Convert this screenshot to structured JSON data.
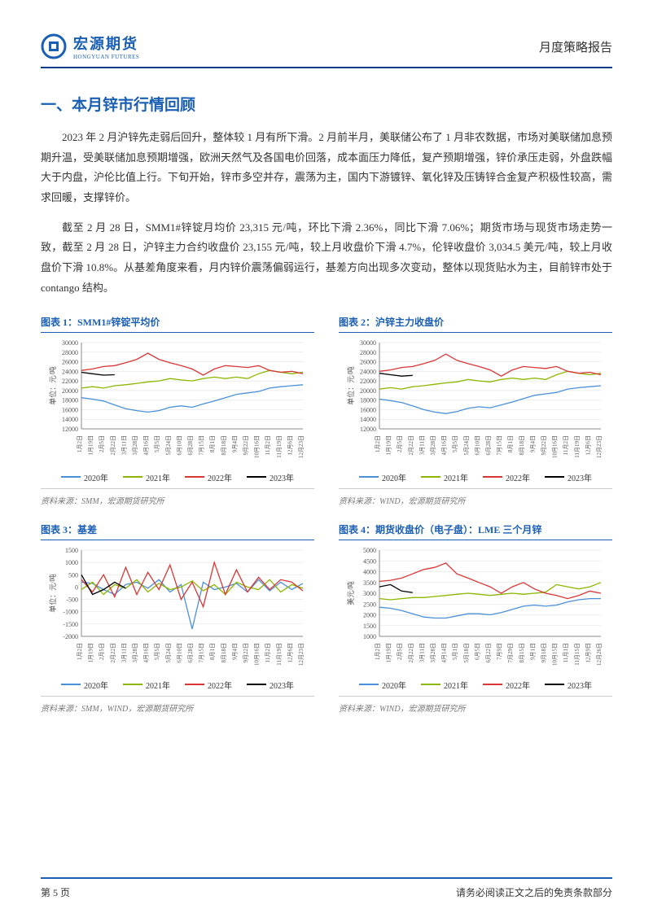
{
  "header": {
    "logo_cn": "宏源期货",
    "logo_en": "HONGYUAN FUTURES",
    "report_type": "月度策略报告",
    "logo_colors": {
      "ring": "#1a5fb4",
      "inner": "#4a90d9"
    }
  },
  "section_title": "一、本月锌市行情回顾",
  "paragraphs": [
    "2023 年 2 月沪锌先走弱后回升，整体较 1 月有所下滑。2 月前半月，美联储公布了 1 月非农数据，市场对美联储加息预期升温，受美联储加息预期增强，欧洲天然气及各国电价回落，成本面压力降低，复产预期增强，锌价承压走弱，外盘跌幅大于内盘，沪伦比值上行。下旬开始，锌市多空并存，震荡为主，国内下游镀锌、氧化锌及压铸锌合金复产积极性较高，需求回暖，支撑锌价。",
    "截至 2 月 28 日，SMM1#锌锭月均价 23,315 元/吨，环比下滑 2.36%，同比下滑 7.06%；期货市场与现货市场走势一致，截至 2 月 28 日，沪锌主力合约收盘价 23,155 元/吨，较上月收盘价下滑 4.7%，伦锌收盘价 3,034.5 美元/吨，较上月收盘价下滑 10.8%。从基差角度来看，月内锌价震荡偏弱运行，基差方向出现多次变动，整体以现货贴水为主，目前锌市处于 contango 结构。"
  ],
  "x_labels": [
    "1月2日",
    "1月19日",
    "2月5日",
    "2月22日",
    "3月11日",
    "3月28日",
    "4月16日",
    "5月5日",
    "5月24日",
    "6月10日",
    "6月28日",
    "7月15日",
    "8月1日",
    "8月18日",
    "9月4日",
    "9月22日",
    "10月16日",
    "11月2日",
    "11月19日",
    "12月6日",
    "12月23日"
  ],
  "x_labels_4": [
    "1月2日",
    "1月19日",
    "2月5日",
    "2月22日",
    "3月11日",
    "3月28日",
    "4月14日",
    "5月1日",
    "5月18日",
    "6月5日",
    "6月22日",
    "7月9日",
    "7月29日",
    "8月15日",
    "9月1日",
    "9月18日",
    "10月15日",
    "11月1日",
    "11月15日",
    "12月9日",
    "12月26日"
  ],
  "legend_labels": [
    "2020年",
    "2021年",
    "2022年",
    "2023年"
  ],
  "series_colors": {
    "2020": "#4a90d9",
    "2021": "#8db600",
    "2022": "#d93636",
    "2023": "#000000"
  },
  "chart_style": {
    "grid_color": "#dcdcdc",
    "axis_color": "#888",
    "background": "#ffffff",
    "label_fontsize": 9,
    "tick_fontsize": 8,
    "line_width": 1.3
  },
  "charts": [
    {
      "id": "chart1",
      "title": "图表 1：SMM1#锌锭平均价",
      "ylabel": "单位：元/吨",
      "ylim": [
        12000,
        30000
      ],
      "yticks": [
        12000,
        14000,
        16000,
        18000,
        20000,
        22000,
        24000,
        26000,
        28000,
        30000
      ],
      "source": "资料来源：SMM，宏源期货研究所",
      "series": {
        "2020": [
          18500,
          18200,
          17800,
          17000,
          16200,
          15800,
          15500,
          15800,
          16500,
          16800,
          16500,
          17200,
          17800,
          18500,
          19200,
          19500,
          19800,
          20500,
          20800,
          21000,
          21200
        ],
        "2021": [
          20500,
          20800,
          20500,
          21000,
          21200,
          21500,
          21800,
          22000,
          22500,
          22200,
          22000,
          22500,
          22800,
          22500,
          22800,
          22500,
          23500,
          24200,
          23800,
          23500,
          23800
        ],
        "2022": [
          24200,
          24500,
          25000,
          25200,
          25800,
          26500,
          27800,
          26500,
          25800,
          25200,
          24500,
          23200,
          24500,
          25200,
          25000,
          24800,
          25200,
          24200,
          23800,
          24000,
          23500
        ],
        "2023": [
          23800,
          23500,
          23200,
          23300
        ]
      }
    },
    {
      "id": "chart2",
      "title": "图表 2：沪锌主力收盘价",
      "ylabel": "单位：元/吨",
      "ylim": [
        12000,
        30000
      ],
      "yticks": [
        12000,
        14000,
        16000,
        18000,
        20000,
        22000,
        24000,
        26000,
        28000,
        30000
      ],
      "source": "资料来源：WIND，宏源期货研究所",
      "series": {
        "2020": [
          18200,
          17900,
          17500,
          16800,
          16000,
          15500,
          15200,
          15600,
          16300,
          16600,
          16400,
          17000,
          17600,
          18300,
          19000,
          19300,
          19600,
          20300,
          20600,
          20800,
          21000
        ],
        "2021": [
          20300,
          20600,
          20300,
          20800,
          21000,
          21300,
          21600,
          21800,
          22300,
          22000,
          21800,
          22300,
          22600,
          22300,
          22600,
          22300,
          23300,
          24000,
          23600,
          23300,
          23600
        ],
        "2022": [
          24000,
          24300,
          24800,
          25000,
          25600,
          26300,
          27600,
          26300,
          25600,
          25000,
          24300,
          23000,
          24300,
          25000,
          24800,
          24600,
          25000,
          24000,
          23600,
          23800,
          23300
        ],
        "2023": [
          23600,
          23300,
          23000,
          23155
        ]
      }
    },
    {
      "id": "chart3",
      "title": "图表 3：基差",
      "ylabel": "单位：元/吨",
      "ylim": [
        -2000,
        1500
      ],
      "yticks": [
        -2000,
        -1500,
        -1000,
        -500,
        0,
        500,
        1000,
        1500
      ],
      "source": "资料来源：SMM，WIND，宏源期货研究所",
      "series": {
        "2020": [
          200,
          150,
          -100,
          -300,
          100,
          200,
          -50,
          300,
          -200,
          100,
          -1700,
          200,
          -100,
          0,
          150,
          -200,
          300,
          -150,
          200,
          -100,
          150
        ],
        "2021": [
          -100,
          200,
          -300,
          100,
          -50,
          300,
          -200,
          150,
          -100,
          0,
          250,
          -150,
          100,
          -300,
          200,
          0,
          -100,
          300,
          -200,
          100,
          -50
        ],
        "2022": [
          300,
          -200,
          500,
          -400,
          800,
          -300,
          600,
          -100,
          900,
          -500,
          200,
          -800,
          1000,
          -300,
          700,
          -200,
          400,
          -100,
          300,
          200,
          -150
        ],
        "2023": [
          500,
          -300,
          -100,
          200,
          -50
        ]
      }
    },
    {
      "id": "chart4",
      "title": "图表 4：期货收盘价（电子盘）：LME 三个月锌",
      "ylabel": "美元/吨",
      "ylim": [
        1000,
        5000
      ],
      "yticks": [
        1000,
        1500,
        2000,
        2500,
        3000,
        3500,
        4000,
        4500,
        5000
      ],
      "source": "资料来源：WIND，宏源期货研究所",
      "series": {
        "2020": [
          2350,
          2300,
          2200,
          2050,
          1900,
          1850,
          1850,
          1950,
          2050,
          2050,
          2000,
          2100,
          2250,
          2400,
          2450,
          2400,
          2450,
          2600,
          2700,
          2750,
          2750
        ],
        "2021": [
          2750,
          2700,
          2750,
          2800,
          2800,
          2850,
          2900,
          2950,
          3000,
          2950,
          2900,
          2950,
          3000,
          2950,
          3000,
          3050,
          3400,
          3300,
          3200,
          3300,
          3500
        ],
        "2022": [
          3550,
          3600,
          3700,
          3900,
          4100,
          4200,
          4400,
          3900,
          3700,
          3500,
          3300,
          3000,
          3300,
          3500,
          3200,
          3000,
          2900,
          2750,
          2900,
          3100,
          3000
        ],
        "2023": [
          3300,
          3400,
          3100,
          3034
        ]
      }
    }
  ],
  "footer": {
    "page": "第 5 页",
    "disclaimer": "请务必阅读正文之后的免责条款部分"
  }
}
